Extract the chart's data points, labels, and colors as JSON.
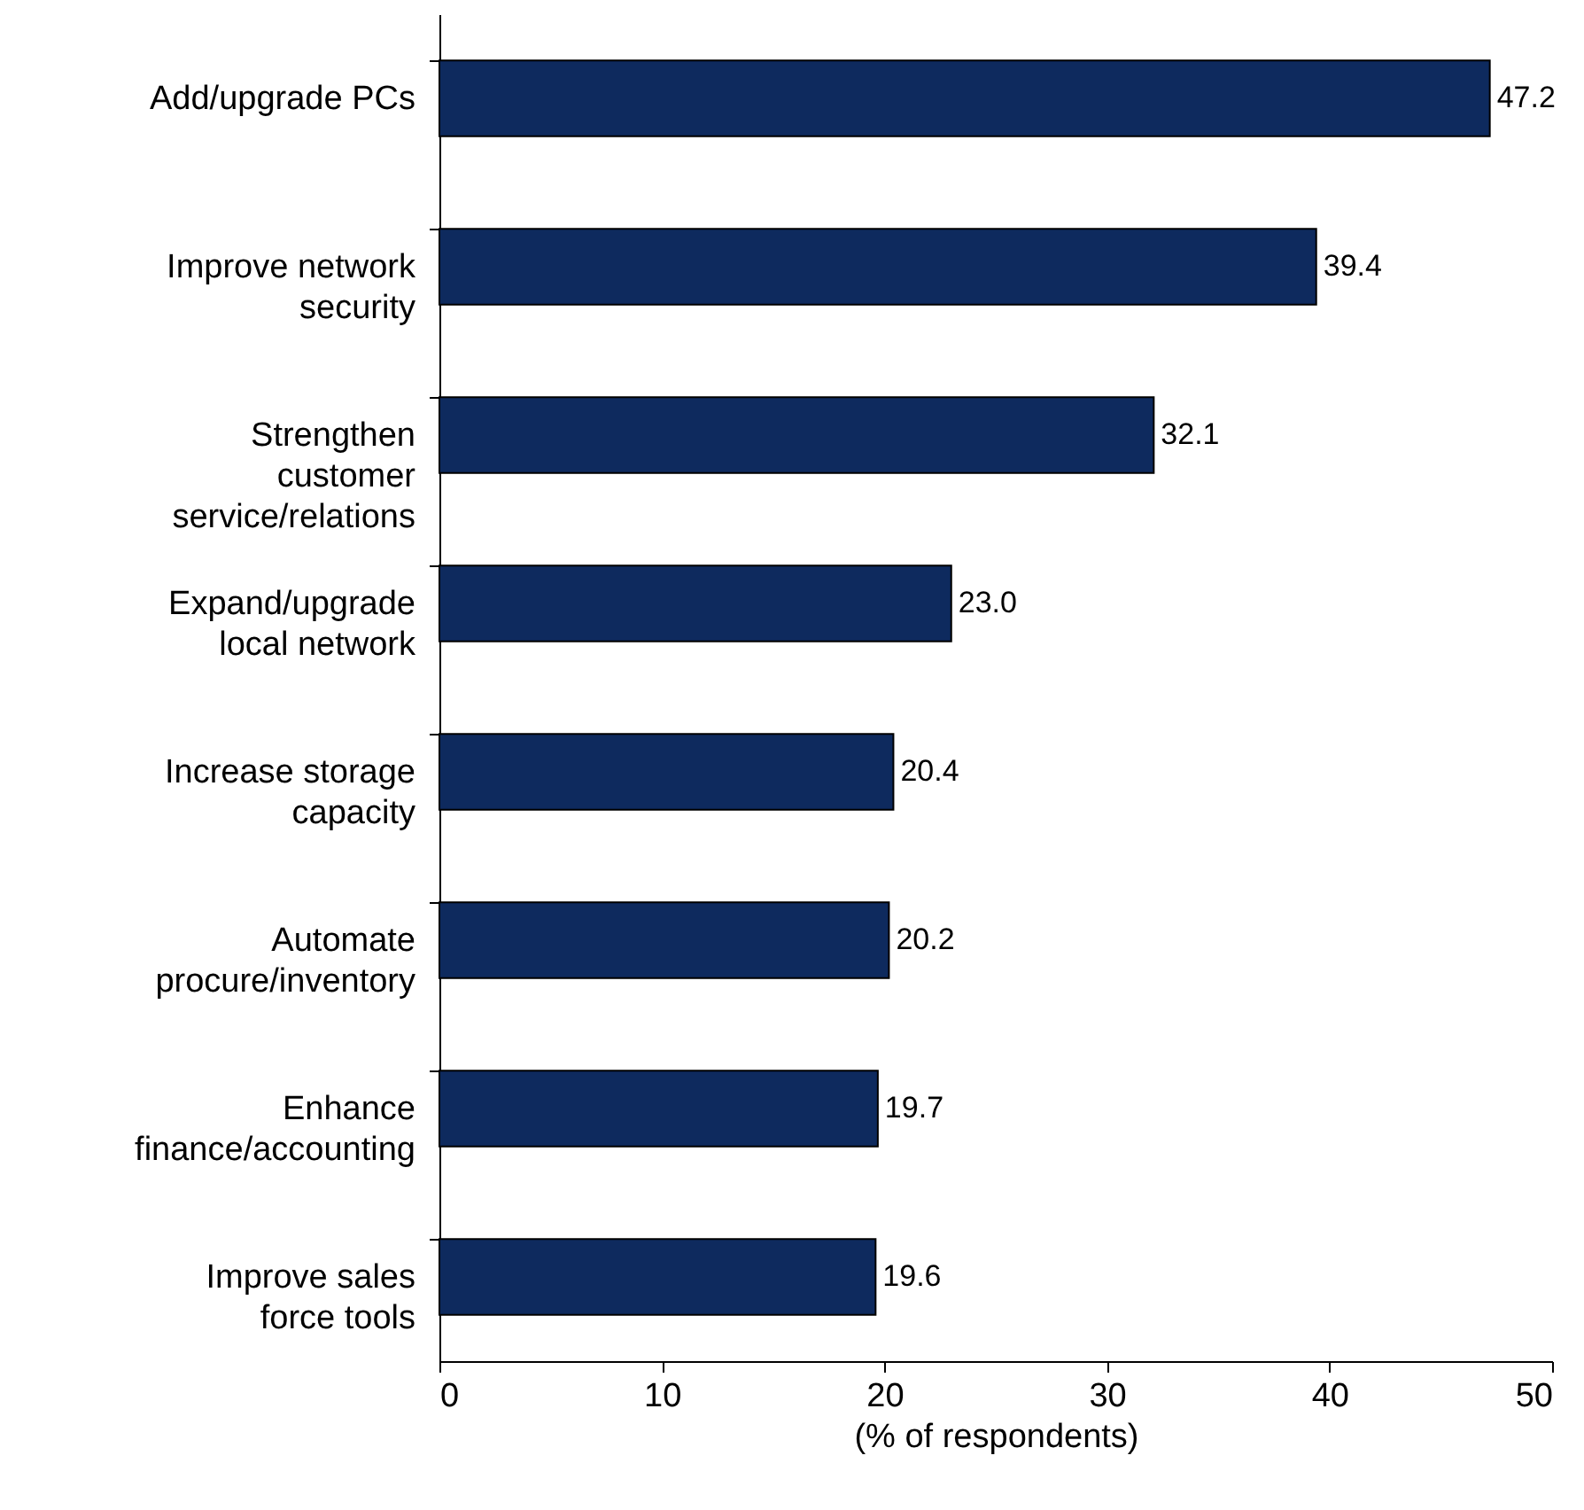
{
  "chart_data": {
    "type": "bar",
    "orientation": "horizontal",
    "xlabel": "(% of respondents)",
    "categories": [
      "Add/upgrade PCs",
      "Improve network security",
      "Strengthen customer service/relations",
      "Expand/upgrade local network",
      "Increase storage capacity",
      "Automate procure/inventory",
      "Enhance finance/accounting",
      "Improve sales force tools"
    ],
    "values": [
      47.2,
      39.4,
      32.1,
      23.0,
      20.4,
      20.2,
      19.7,
      19.6
    ],
    "value_labels": [
      "47.2",
      "39.4",
      "32.1",
      "23.0",
      "20.4",
      "20.2",
      "19.7",
      "19.6"
    ],
    "color": "#0e2a5e",
    "xlim": [
      0,
      50
    ],
    "xticks": [
      0,
      10,
      20,
      30,
      40,
      50
    ],
    "grid": false
  }
}
